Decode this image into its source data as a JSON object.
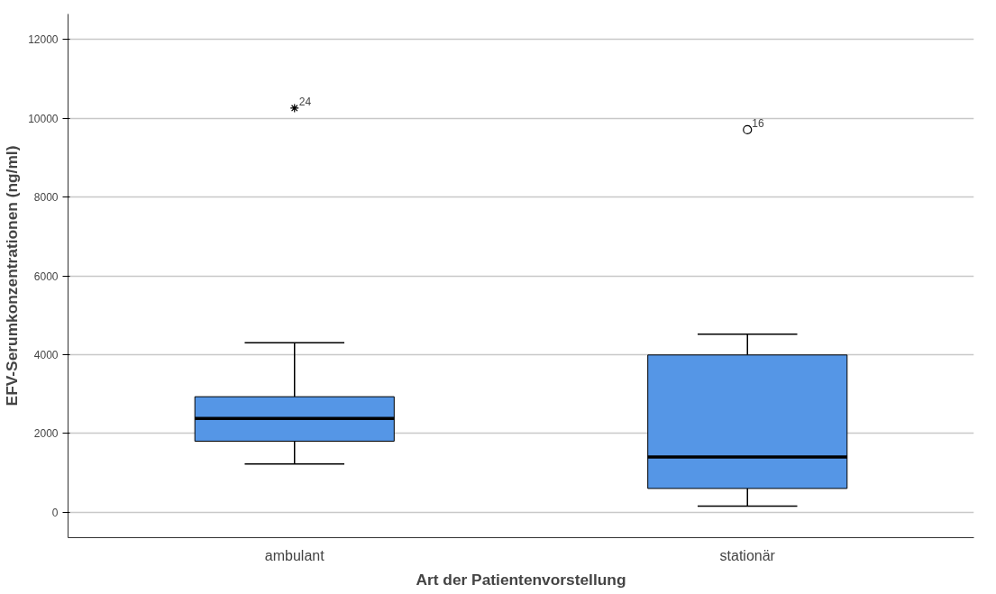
{
  "chart_data": {
    "type": "box",
    "xlabel": "Art der Patientenvorstellung",
    "ylabel": "EFV-Serumkonzentrationen (ng/ml)",
    "categories": [
      "ambulant",
      "stationär"
    ],
    "series": [
      {
        "color": "#5596e6",
        "marker": "star",
        "boxes": [
          {
            "low": 1220,
            "q1": 1800,
            "median": 2380,
            "q3": 2930,
            "high": 4300,
            "outliers": [
              10260
            ]
          },
          null
        ]
      },
      {
        "color": "#5596e6",
        "marker": "circle",
        "boxes": [
          null,
          {
            "low": 150,
            "q1": 600,
            "median": 1400,
            "q3": 3990,
            "high": 4520,
            "outliers": [
              9710
            ]
          }
        ]
      }
    ],
    "ylim": [
      -650,
      12650
    ],
    "yticks": [
      0,
      2000,
      4000,
      6000,
      8000,
      10000,
      12000
    ],
    "grid": "y",
    "annotations": [
      "24",
      "16"
    ]
  }
}
